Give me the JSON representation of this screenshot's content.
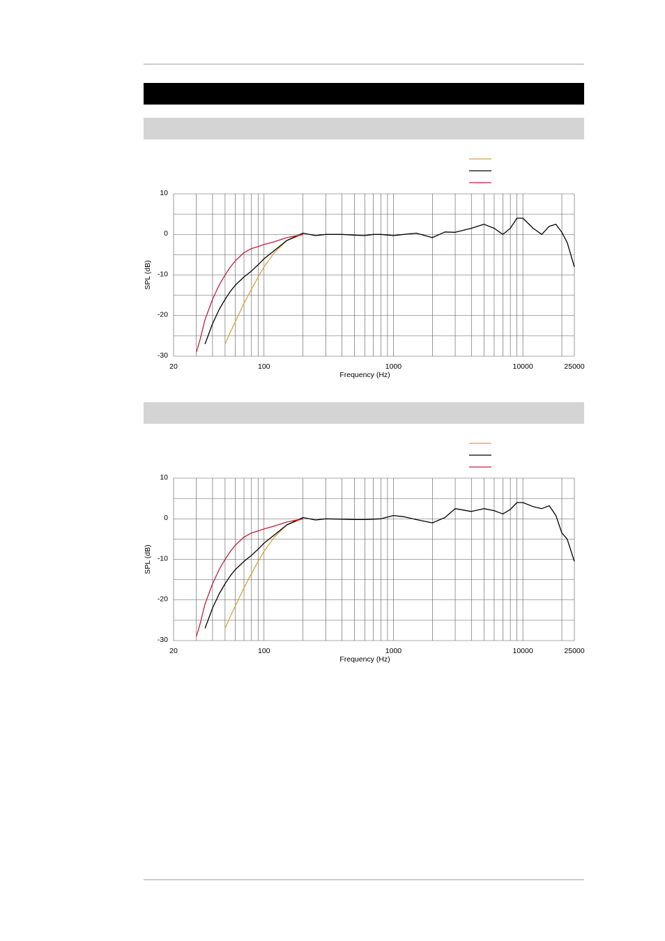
{
  "chart_data": [
    {
      "type": "line",
      "xlabel": "Frequency (Hz)",
      "ylabel": "SPL (dB)",
      "xscale": "log",
      "xlim": [
        20,
        25000
      ],
      "xticks": [
        20,
        100,
        1000,
        10000,
        25000
      ],
      "xgrid": [
        30,
        40,
        50,
        60,
        70,
        80,
        90,
        200,
        300,
        400,
        500,
        600,
        700,
        800,
        900,
        2000,
        3000,
        4000,
        5000,
        6000,
        7000,
        8000,
        9000,
        20000
      ],
      "ylim": [
        -30,
        10
      ],
      "yticks": [
        10,
        0,
        -10,
        -20,
        -30
      ],
      "ygrid": [
        5,
        -5,
        -15,
        -25
      ],
      "grid": true,
      "x": [
        30,
        32,
        35,
        40,
        45,
        50,
        55,
        60,
        70,
        80,
        90,
        100,
        120,
        150,
        200,
        250,
        300,
        400,
        500,
        600,
        700,
        800,
        1000,
        1200,
        1500,
        2000,
        2500,
        3000,
        4000,
        5000,
        6000,
        7000,
        8000,
        9000,
        10000,
        12000,
        14000,
        16000,
        18000,
        20000,
        22000,
        25000
      ],
      "series": [
        {
          "color": "#d9a03a",
          "values": [
            null,
            null,
            null,
            null,
            null,
            -27,
            -24,
            -21.5,
            -17,
            -13.5,
            -10.5,
            -8,
            -4.5,
            -1.5,
            0,
            null,
            null,
            null,
            null,
            null,
            null,
            null,
            null,
            null,
            null,
            null,
            null,
            null,
            null,
            null,
            null,
            null,
            null,
            null,
            null,
            null,
            null,
            null,
            null,
            null,
            null,
            null
          ]
        },
        {
          "color": "#000000",
          "values": [
            null,
            null,
            -27,
            -22,
            -18.5,
            -16,
            -14,
            -12.5,
            -10.5,
            -9,
            -7.5,
            -6,
            -4,
            -1.5,
            0.3,
            -0.3,
            0,
            0,
            -0.2,
            -0.3,
            0,
            0,
            -0.3,
            0,
            0.3,
            -0.8,
            0.6,
            0.5,
            1.5,
            2.5,
            1.5,
            0,
            1.5,
            4,
            4,
            1.5,
            0,
            2,
            2.5,
            0.5,
            -2,
            -8
          ]
        },
        {
          "color": "#c0203a",
          "values": [
            -29,
            -26,
            -21,
            -16,
            -12.5,
            -10,
            -8,
            -6.5,
            -4.5,
            -3.5,
            -3,
            -2.5,
            -1.8,
            -0.8,
            0,
            null,
            null,
            null,
            null,
            null,
            null,
            null,
            null,
            null,
            null,
            null,
            null,
            null,
            null,
            null,
            null,
            null,
            null,
            null,
            null,
            null,
            null,
            null,
            null,
            null,
            null,
            null
          ]
        }
      ]
    },
    {
      "type": "line",
      "xlabel": "Frequency (Hz)",
      "ylabel": "SPL (dB)",
      "xscale": "log",
      "xlim": [
        20,
        25000
      ],
      "xticks": [
        20,
        100,
        1000,
        10000,
        25000
      ],
      "xgrid": [
        30,
        40,
        50,
        60,
        70,
        80,
        90,
        200,
        300,
        400,
        500,
        600,
        700,
        800,
        900,
        2000,
        3000,
        4000,
        5000,
        6000,
        7000,
        8000,
        9000,
        20000
      ],
      "ylim": [
        -30,
        10
      ],
      "yticks": [
        10,
        0,
        -10,
        -20,
        -30
      ],
      "ygrid": [
        5,
        -5,
        -15,
        -25
      ],
      "grid": true,
      "x": [
        30,
        32,
        35,
        40,
        45,
        50,
        55,
        60,
        70,
        80,
        90,
        100,
        120,
        150,
        200,
        250,
        300,
        400,
        500,
        600,
        700,
        800,
        1000,
        1200,
        1500,
        2000,
        2500,
        3000,
        4000,
        5000,
        6000,
        7000,
        8000,
        9000,
        10000,
        12000,
        14000,
        16000,
        18000,
        20000,
        22000,
        25000
      ],
      "series": [
        {
          "color": "#d9a03a",
          "values": [
            null,
            null,
            null,
            null,
            null,
            -27,
            -24,
            -21.5,
            -17,
            -13.5,
            -10.5,
            -8,
            -4.5,
            -1.5,
            0,
            null,
            null,
            null,
            null,
            null,
            null,
            null,
            null,
            null,
            null,
            null,
            null,
            null,
            null,
            null,
            null,
            null,
            null,
            null,
            null,
            null,
            null,
            null,
            null,
            null,
            null,
            null
          ]
        },
        {
          "color": "#000000",
          "values": [
            null,
            null,
            -27,
            -22,
            -18.5,
            -16,
            -14,
            -12.5,
            -10.5,
            -9,
            -7.5,
            -6,
            -4,
            -1.5,
            0.3,
            -0.3,
            0,
            -0.1,
            -0.2,
            -0.2,
            -0.1,
            0,
            0.8,
            0.5,
            -0.2,
            -1,
            0.3,
            2.5,
            1.8,
            2.5,
            2,
            1.2,
            2.3,
            4,
            4,
            3,
            2.5,
            3.2,
            0.8,
            -3.5,
            -5,
            -10.5
          ]
        },
        {
          "color": "#c0203a",
          "values": [
            -29,
            -26,
            -21,
            -16,
            -12.5,
            -10,
            -8,
            -6.5,
            -4.5,
            -3.5,
            -3,
            -2.5,
            -1.8,
            -0.8,
            0,
            null,
            null,
            null,
            null,
            null,
            null,
            null,
            null,
            null,
            null,
            null,
            null,
            null,
            null,
            null,
            null,
            null,
            null,
            null,
            null,
            null,
            null,
            null,
            null,
            null,
            null,
            null
          ]
        }
      ]
    }
  ]
}
